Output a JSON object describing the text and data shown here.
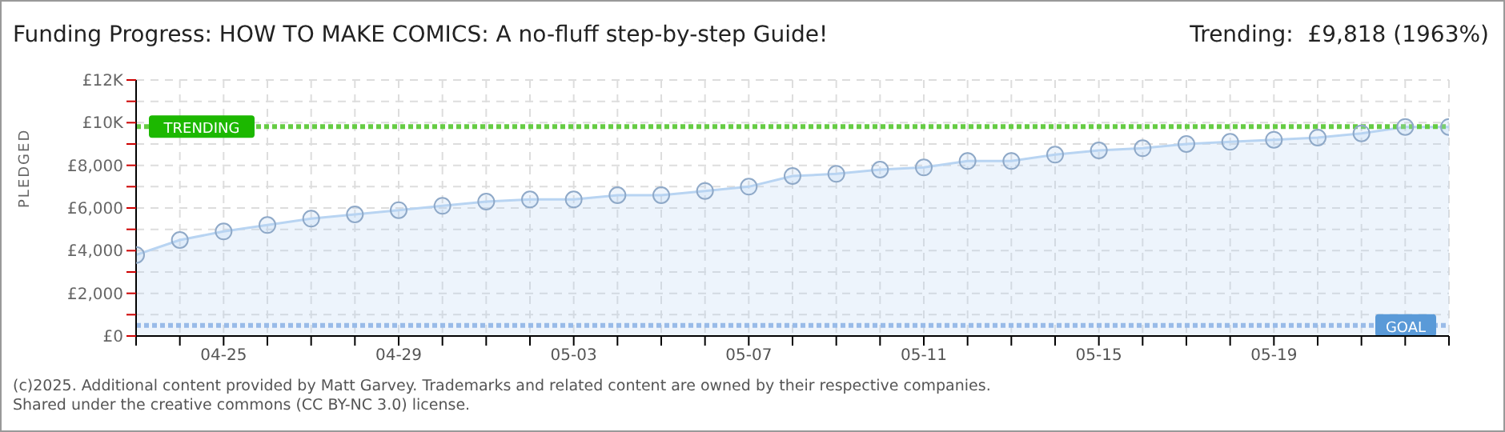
{
  "chart_data": {
    "type": "area",
    "title": "Funding Progress: HOW TO MAKE COMICS: A no-fluff step-by-step Guide!",
    "subtitle": "Trending:  £9,818 (1963%)",
    "ylabel": "PLEDGED",
    "categories": [
      null,
      null,
      "04-25",
      null,
      null,
      null,
      "04-29",
      null,
      null,
      null,
      "05-03",
      null,
      null,
      null,
      "05-07",
      null,
      null,
      null,
      "05-11",
      null,
      null,
      null,
      "05-15",
      null,
      null,
      null,
      "05-19",
      null,
      null,
      null,
      null
    ],
    "series": [
      {
        "color": "#b8d4f2",
        "values": [
          3800,
          4500,
          4900,
          5200,
          5500,
          5700,
          5900,
          6100,
          6300,
          6400,
          6400,
          6600,
          6600,
          6800,
          7000,
          7500,
          7600,
          7800,
          7900,
          8200,
          8200,
          8500,
          8700,
          8800,
          9000,
          9100,
          9200,
          9300,
          9500,
          9800,
          9800
        ]
      }
    ],
    "ylim": [
      0,
      12000
    ],
    "yticks": [
      {
        "value": 0,
        "label": "£0"
      },
      {
        "value": 1000,
        "label": null
      },
      {
        "value": 2000,
        "label": "£2,000"
      },
      {
        "value": 3000,
        "label": null
      },
      {
        "value": 4000,
        "label": "£4,000"
      },
      {
        "value": 5000,
        "label": null
      },
      {
        "value": 6000,
        "label": "£6,000"
      },
      {
        "value": 7000,
        "label": null
      },
      {
        "value": 8000,
        "label": "£8,000"
      },
      {
        "value": 9000,
        "label": null
      },
      {
        "value": 10000,
        "label": "£10K"
      },
      {
        "value": 11000,
        "label": null
      },
      {
        "value": 12000,
        "label": "£12K"
      }
    ],
    "grid": true,
    "marker": "circle",
    "legend": false,
    "ref_lines": [
      {
        "axis": "y",
        "value": 9818,
        "label": "TRENDING",
        "color": "#66cc44",
        "line_style": "dotted"
      },
      {
        "axis": "y",
        "value": 500,
        "label": "GOAL",
        "color": "#99bbe8",
        "line_style": "dotted"
      }
    ],
    "annotations": [
      "(c)2025. Additional content provided by Matt Garvey. Trademarks and related content are owned by their respective companies.",
      "Shared under the creative commons (CC BY-NC 3.0) license."
    ]
  }
}
